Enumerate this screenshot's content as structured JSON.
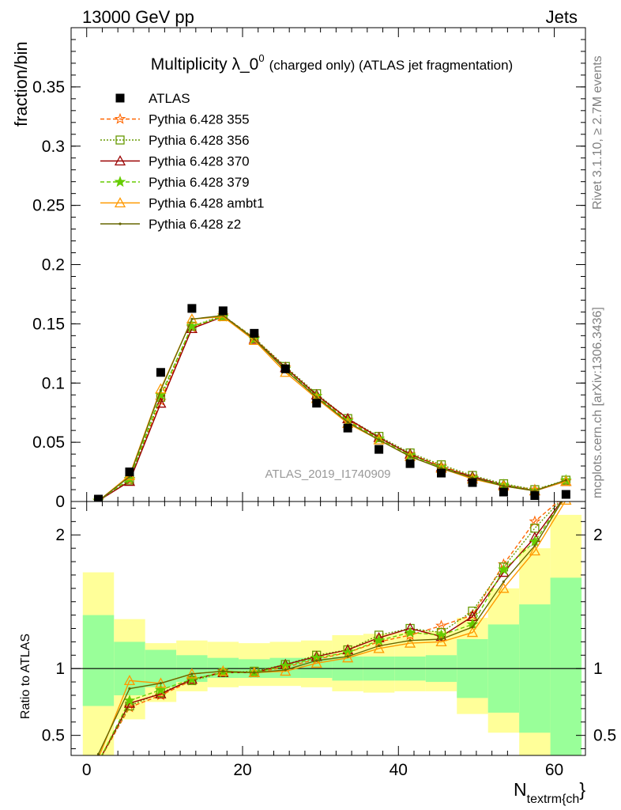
{
  "header": {
    "left": "13000 GeV pp",
    "right": "Jets"
  },
  "side_labels": {
    "rivet": "Rivet 3.1.10, ≥ 2.7M events",
    "mcplots": "mcplots.cern.ch [arXiv:1306.3436]"
  },
  "chart_data": [
    {
      "type": "scatter",
      "panel": "main",
      "title": "Multiplicity λ_0",
      "title_sup": "0",
      "title_tail": "(charged only) (ATLAS jet fragmentation)",
      "ylabel": "fraction/bin",
      "analysis_label": "ATLAS_2019_I1740909",
      "xlim": [
        -2,
        64
      ],
      "ylim": [
        0,
        0.4
      ],
      "yticks": [
        0,
        0.05,
        0.1,
        0.15,
        0.2,
        0.25,
        0.3,
        0.35
      ],
      "ytick_labels": [
        "0",
        "0.05",
        "0.1",
        "0.15",
        "0.2",
        "0.25",
        "0.3",
        "0.35"
      ],
      "x": [
        1.5,
        5.5,
        9.5,
        13.5,
        17.5,
        21.5,
        25.5,
        29.5,
        33.5,
        37.5,
        41.5,
        45.5,
        49.5,
        53.5,
        57.5,
        61.5
      ],
      "data_series": {
        "name": "ATLAS",
        "color": "#000000",
        "values": [
          0.002,
          0.025,
          0.109,
          0.163,
          0.161,
          0.142,
          0.112,
          0.083,
          0.062,
          0.044,
          0.032,
          0.024,
          0.016,
          0.008,
          0.005,
          0.006
        ]
      },
      "series": [
        {
          "name": "Pythia 6.428 355",
          "color": "#ff6600",
          "dash": "5,3",
          "marker": "star-open",
          "values": [
            0.0006,
            0.018,
            0.085,
            0.147,
            0.157,
            0.138,
            0.113,
            0.089,
            0.069,
            0.053,
            0.04,
            0.03,
            0.021,
            0.014,
            0.01,
            0.017
          ]
        },
        {
          "name": "Pythia 6.428 356",
          "color": "#669900",
          "dash": "2,2",
          "marker": "square-open",
          "values": [
            0.0006,
            0.018,
            0.088,
            0.148,
            0.157,
            0.138,
            0.114,
            0.091,
            0.07,
            0.055,
            0.041,
            0.031,
            0.022,
            0.015,
            0.01,
            0.018
          ]
        },
        {
          "name": "Pythia 6.428 370",
          "color": "#990000",
          "dash": "",
          "marker": "triangle-open",
          "values": [
            0.0006,
            0.017,
            0.083,
            0.146,
            0.156,
            0.137,
            0.113,
            0.09,
            0.07,
            0.054,
            0.04,
            0.029,
            0.021,
            0.014,
            0.009,
            0.017
          ]
        },
        {
          "name": "Pythia 6.428 379",
          "color": "#66cc00",
          "dash": "5,3",
          "marker": "star",
          "values": [
            0.0006,
            0.019,
            0.09,
            0.148,
            0.156,
            0.137,
            0.112,
            0.089,
            0.068,
            0.053,
            0.039,
            0.029,
            0.02,
            0.014,
            0.009,
            0.018
          ]
        },
        {
          "name": "Pythia 6.428 ambt1",
          "color": "#ff9900",
          "dash": "",
          "marker": "triangle-open",
          "values": [
            0.0005,
            0.022,
            0.095,
            0.154,
            0.156,
            0.136,
            0.109,
            0.087,
            0.066,
            0.052,
            0.038,
            0.028,
            0.019,
            0.013,
            0.009,
            0.017
          ]
        },
        {
          "name": "Pythia 6.428 z2",
          "color": "#666600",
          "dash": "",
          "marker": "dot",
          "values": [
            0.0005,
            0.021,
            0.094,
            0.154,
            0.157,
            0.137,
            0.111,
            0.088,
            0.067,
            0.052,
            0.038,
            0.028,
            0.02,
            0.013,
            0.009,
            0.018
          ]
        }
      ]
    },
    {
      "type": "line",
      "panel": "ratio",
      "ylabel": "Ratio to ATLAS",
      "xlabel": "N",
      "xlabel_sub": "textrm{ch",
      "xlabel_tail": "}",
      "xlim": [
        -2,
        64
      ],
      "ylim": [
        0.35,
        2.25
      ],
      "yticks": [
        0.5,
        1,
        2
      ],
      "ytick_labels": [
        "0.5",
        "1",
        "2"
      ],
      "xticks": [
        0,
        20,
        40,
        60
      ],
      "xtick_labels": [
        "0",
        "20",
        "40",
        "60"
      ],
      "x": [
        1.5,
        5.5,
        9.5,
        13.5,
        17.5,
        21.5,
        25.5,
        29.5,
        33.5,
        37.5,
        41.5,
        45.5,
        49.5,
        53.5,
        57.5,
        61.5
      ],
      "bands": {
        "green_color": "#99ff99",
        "yellow_color": "#ffff99",
        "green_lo": [
          0.72,
          0.8,
          0.86,
          0.9,
          0.93,
          0.93,
          0.93,
          0.93,
          0.91,
          0.91,
          0.91,
          0.9,
          0.78,
          0.67,
          0.52,
          0.32
        ],
        "green_hi": [
          1.4,
          1.2,
          1.14,
          1.1,
          1.08,
          1.07,
          1.08,
          1.08,
          1.09,
          1.09,
          1.09,
          1.1,
          1.22,
          1.33,
          1.48,
          1.68
        ],
        "yellow_lo": [
          0.3,
          0.62,
          0.75,
          0.83,
          0.86,
          0.87,
          0.87,
          0.86,
          0.83,
          0.82,
          0.83,
          0.83,
          0.66,
          0.52,
          0.3,
          0.3
        ],
        "yellow_hi": [
          1.72,
          1.37,
          1.19,
          1.21,
          1.2,
          1.19,
          1.2,
          1.21,
          1.25,
          1.26,
          1.27,
          1.28,
          1.38,
          1.6,
          1.9,
          2.15
        ]
      },
      "series": [
        {
          "name": "Pythia 6.428 355",
          "values": [
            0.3,
            0.71,
            0.8,
            0.91,
            0.98,
            0.97,
            1.01,
            1.07,
            1.12,
            1.2,
            1.25,
            1.32,
            1.4,
            1.78,
            2.1,
            2.3
          ]
        },
        {
          "name": "Pythia 6.428 356",
          "values": [
            0.3,
            0.72,
            0.82,
            0.91,
            0.97,
            0.98,
            1.03,
            1.1,
            1.14,
            1.25,
            1.3,
            1.27,
            1.43,
            1.76,
            2.05,
            2.3
          ]
        },
        {
          "name": "Pythia 6.428 370",
          "values": [
            0.3,
            0.74,
            0.81,
            0.92,
            0.97,
            0.97,
            1.03,
            1.09,
            1.14,
            1.23,
            1.3,
            1.24,
            1.39,
            1.72,
            1.98,
            2.3
          ]
        },
        {
          "name": "Pythia 6.428 379",
          "values": [
            0.3,
            0.76,
            0.84,
            0.92,
            0.97,
            0.97,
            1.02,
            1.08,
            1.12,
            1.21,
            1.27,
            1.25,
            1.33,
            1.74,
            1.95,
            2.3
          ]
        },
        {
          "name": "Pythia 6.428 ambt1",
          "values": [
            0.33,
            0.91,
            0.89,
            0.96,
            0.98,
            0.97,
            0.98,
            1.04,
            1.08,
            1.15,
            1.19,
            1.2,
            1.27,
            1.6,
            1.88,
            2.26
          ]
        },
        {
          "name": "Pythia 6.428 z2",
          "values": [
            0.36,
            0.85,
            0.89,
            0.96,
            0.98,
            0.97,
            0.99,
            1.06,
            1.09,
            1.17,
            1.21,
            1.22,
            1.31,
            1.65,
            1.92,
            2.3
          ]
        }
      ]
    }
  ]
}
